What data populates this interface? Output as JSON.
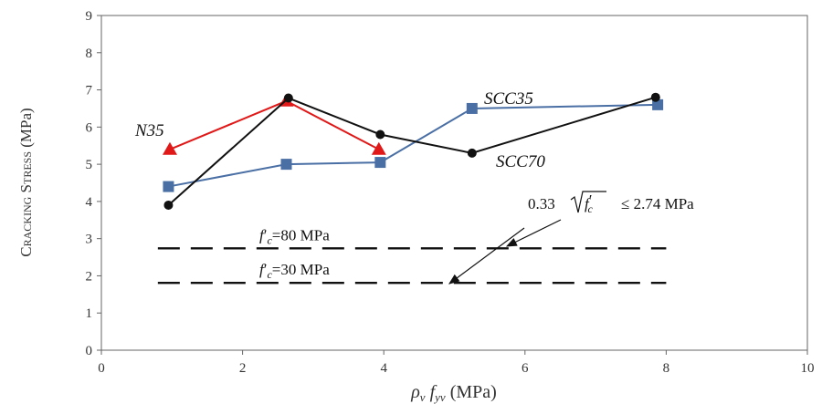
{
  "chart_data": {
    "type": "line",
    "title": "",
    "xlabel": "ρv fyv (MPa)",
    "ylabel": "Cracking Stress (MPa)",
    "xlim": [
      0,
      10
    ],
    "ylim": [
      0,
      9
    ],
    "x_ticks": [
      "0",
      "2",
      "4",
      "6",
      "8",
      "10"
    ],
    "y_ticks": [
      "0",
      "1",
      "2",
      "3",
      "4",
      "5",
      "6",
      "7",
      "8",
      "9"
    ],
    "grid": false,
    "series": [
      {
        "name": "N35",
        "color": "#e01818",
        "marker": "triangle",
        "x": [
          0.97,
          2.62,
          3.93
        ],
        "y": [
          5.4,
          6.7,
          5.4
        ]
      },
      {
        "name": "SCC35",
        "color": "#4a6fa5",
        "marker": "square",
        "x": [
          0.95,
          2.62,
          3.95,
          5.25,
          7.88
        ],
        "y": [
          4.4,
          5.0,
          5.05,
          6.5,
          6.6
        ]
      },
      {
        "name": "SCC70",
        "color": "#111111",
        "marker": "circle",
        "x": [
          0.95,
          2.65,
          3.95,
          5.25,
          7.85
        ],
        "y": [
          3.9,
          6.78,
          5.8,
          5.3,
          6.8
        ]
      }
    ],
    "reference_lines": [
      {
        "label_prefix": "f",
        "label_sub": "c",
        "label_suffix": "=80 MPa",
        "y": 2.74,
        "x_start": 0.8,
        "x_end": 8.0
      },
      {
        "label_prefix": "f",
        "label_sub": "c",
        "label_suffix": "=30 MPa",
        "y": 1.81,
        "x_start": 0.8,
        "x_end": 8.0
      }
    ],
    "annotation": {
      "prefix": "0.33",
      "radicand_main": "f",
      "radicand_sup": "′",
      "radicand_sub": "c",
      "suffix": "≤ 2.74 MPa"
    }
  }
}
